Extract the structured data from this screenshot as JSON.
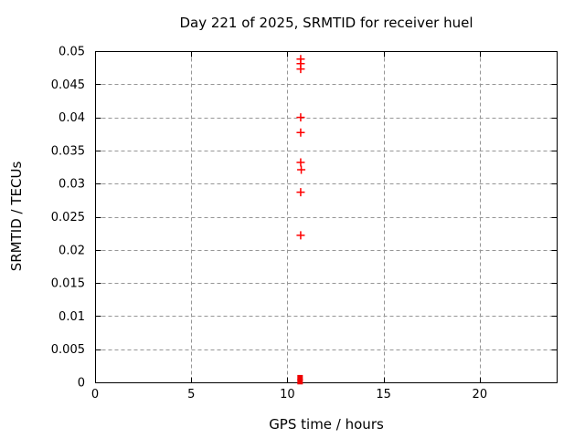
{
  "chart_data": {
    "type": "scatter",
    "title": "Day 221 of 2025, SRMTID for receiver huel",
    "xlabel": "GPS time / hours",
    "ylabel": "SRMTID / TECUs",
    "xlim": [
      0,
      24
    ],
    "ylim": [
      0,
      0.05
    ],
    "grid": true,
    "legend": "none",
    "x_ticks": {
      "values": [
        0,
        5,
        10,
        15,
        20
      ],
      "labels": [
        "0",
        "5",
        "10",
        "15",
        "20"
      ]
    },
    "y_ticks": {
      "values": [
        0,
        0.005,
        0.01,
        0.015,
        0.02,
        0.025,
        0.03,
        0.035,
        0.04,
        0.045,
        0.05
      ],
      "labels": [
        "0",
        "0.005",
        "0.01",
        "0.015",
        "0.02",
        "0.025",
        "0.03",
        "0.035",
        "0.04",
        "0.045",
        "0.05"
      ]
    },
    "series": [
      {
        "name": "srmtid-values",
        "marker": "plus",
        "color": "#ff0000",
        "points": [
          [
            10.69,
            0.0488
          ],
          [
            10.69,
            0.0481
          ],
          [
            10.69,
            0.0473
          ],
          [
            10.69,
            0.04
          ],
          [
            10.69,
            0.0377
          ],
          [
            10.69,
            0.0332
          ],
          [
            10.72,
            0.0321
          ],
          [
            10.69,
            0.0287
          ],
          [
            10.69,
            0.0222
          ]
        ]
      },
      {
        "name": "srmtid-zero-values",
        "marker": "filled-square",
        "color": "#ee0000",
        "points": [
          [
            10.66,
            0.0007
          ],
          [
            10.66,
            0.0001
          ]
        ]
      }
    ],
    "colors": {
      "axis": "#000000",
      "grid": "#969696",
      "background": "#ffffff"
    }
  }
}
